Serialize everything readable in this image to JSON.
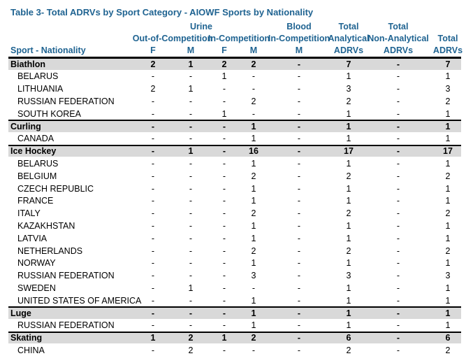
{
  "header": {
    "title": "Table 3- Total ADRVs by Sport Category - AIOWF Sports by Nationality",
    "rows": [
      [
        "Urine",
        "Blood",
        "Total",
        "Total"
      ],
      [
        "Out-of-Competition",
        "In-Competition",
        "In-Competition",
        "Analytical",
        "Non-Analytical",
        "Total"
      ],
      [
        "Sport - Nationality",
        "F",
        "M",
        "F",
        "M",
        "M",
        "ADRVs",
        "ADRVs",
        "ADRVs"
      ]
    ]
  },
  "table": {
    "sections": [
      {
        "header": [
          "Biathlon",
          2,
          1,
          2,
          2,
          "-",
          7,
          "-",
          7
        ],
        "rows": [
          [
            "BELARUS",
            "-",
            "-",
            1,
            "-",
            "-",
            1,
            "-",
            1
          ],
          [
            "LITHUANIA",
            2,
            1,
            "-",
            "-",
            "-",
            3,
            "-",
            3
          ],
          [
            "RUSSIAN FEDERATION",
            "-",
            "-",
            "-",
            2,
            "-",
            2,
            "-",
            2
          ],
          [
            "SOUTH KOREA",
            "-",
            "-",
            1,
            "-",
            "-",
            1,
            "-",
            1
          ]
        ]
      },
      {
        "header": [
          "Curling",
          "-",
          "-",
          "-",
          1,
          "-",
          1,
          "-",
          1
        ],
        "rows": [
          [
            "CANADA",
            "-",
            "-",
            "-",
            1,
            "-",
            1,
            "-",
            1
          ]
        ]
      },
      {
        "header": [
          "Ice Hockey",
          "-",
          1,
          "-",
          16,
          "-",
          17,
          "-",
          17
        ],
        "rows": [
          [
            "BELARUS",
            "-",
            "-",
            "-",
            1,
            "-",
            1,
            "-",
            1
          ],
          [
            "BELGIUM",
            "-",
            "-",
            "-",
            2,
            "-",
            2,
            "-",
            2
          ],
          [
            "CZECH REPUBLIC",
            "-",
            "-",
            "-",
            1,
            "-",
            1,
            "-",
            1
          ],
          [
            "FRANCE",
            "-",
            "-",
            "-",
            1,
            "-",
            1,
            "-",
            1
          ],
          [
            "ITALY",
            "-",
            "-",
            "-",
            2,
            "-",
            2,
            "-",
            2
          ],
          [
            "KAZAKHSTAN",
            "-",
            "-",
            "-",
            1,
            "-",
            1,
            "-",
            1
          ],
          [
            "LATVIA",
            "-",
            "-",
            "-",
            1,
            "-",
            1,
            "-",
            1
          ],
          [
            "NETHERLANDS",
            "-",
            "-",
            "-",
            2,
            "-",
            2,
            "-",
            2
          ],
          [
            "NORWAY",
            "-",
            "-",
            "-",
            1,
            "-",
            1,
            "-",
            1
          ],
          [
            "RUSSIAN FEDERATION",
            "-",
            "-",
            "-",
            3,
            "-",
            3,
            "-",
            3
          ],
          [
            "SWEDEN",
            "-",
            1,
            "-",
            "-",
            "-",
            1,
            "-",
            1
          ],
          [
            "UNITED STATES OF AMERICA",
            "-",
            "-",
            "-",
            1,
            "-",
            1,
            "-",
            1
          ]
        ]
      },
      {
        "header": [
          "Luge",
          "-",
          "-",
          "-",
          1,
          "-",
          1,
          "-",
          1
        ],
        "rows": [
          [
            "RUSSIAN FEDERATION",
            "-",
            "-",
            "-",
            1,
            "-",
            1,
            "-",
            1
          ]
        ]
      },
      {
        "header": [
          "Skating",
          1,
          2,
          1,
          2,
          "-",
          6,
          "-",
          6
        ],
        "rows": [
          [
            "CHINA",
            "-",
            2,
            "-",
            "-",
            "-",
            2,
            "-",
            2
          ]
        ]
      }
    ]
  }
}
